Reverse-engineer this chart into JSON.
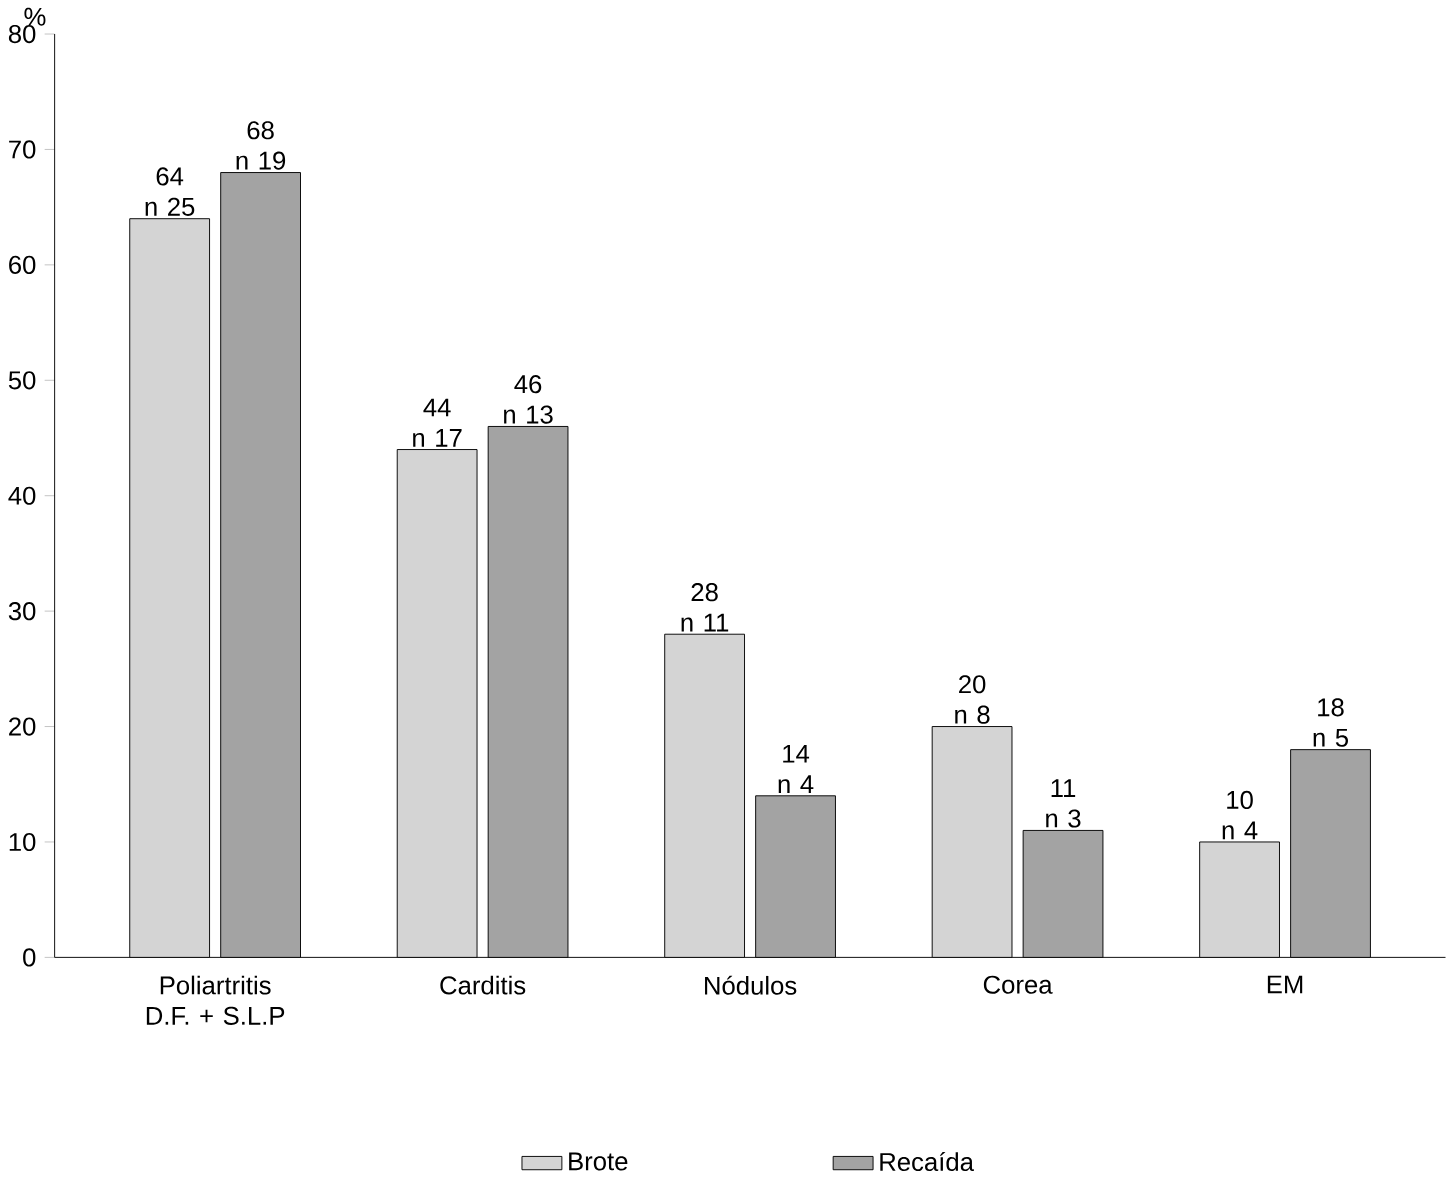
{
  "chart_data": {
    "type": "bar",
    "ylabel": "%",
    "categories": [
      "Poliartritis D.F. + S.L.P",
      "Carditis",
      "Nódulos",
      "Corea",
      "EM"
    ],
    "series": [
      {
        "name": "Brote",
        "color": "#d4d4d4",
        "values": [
          64,
          44,
          28,
          20,
          10
        ],
        "value_labels": [
          "64 n 25",
          "44 n 17",
          "28 n 11",
          "20 n 8",
          "10 n 4"
        ]
      },
      {
        "name": "Recaída",
        "color": "#a3a3a3",
        "values": [
          68,
          46,
          14,
          11,
          18
        ],
        "value_labels": [
          "68 n 19",
          "46 n 13",
          "14 n 4",
          "11 n 3",
          "18 n 5"
        ]
      }
    ],
    "ylim": [
      0,
      80
    ],
    "yticks": [
      0,
      10,
      20,
      30,
      40,
      50,
      60,
      70,
      80
    ],
    "grid": false,
    "legend": "bottom"
  }
}
